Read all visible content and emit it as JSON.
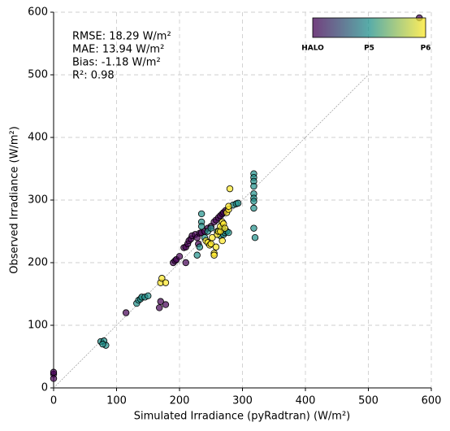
{
  "chart_data": {
    "type": "scatter",
    "xlabel": "Simulated Irradiance (pyRadtran) (W/m²)",
    "ylabel": "Observed Irradiance (W/m²)",
    "annotations": [
      "RMSE: 18.29 W/m²",
      "MAE:  13.94 W/m²",
      "Bias:  -1.18 W/m²",
      "R²: 0.98"
    ],
    "xlim": [
      0,
      600
    ],
    "ylim": [
      0,
      600
    ],
    "xticks": [
      0,
      100,
      200,
      300,
      400,
      500,
      600
    ],
    "yticks": [
      0,
      100,
      200,
      300,
      400,
      500,
      600
    ],
    "grid": true,
    "reference_line": {
      "x": [
        0,
        500
      ],
      "y": [
        0,
        500
      ]
    },
    "series": [
      {
        "name": "HALO",
        "color": "#440154",
        "x": [
          0,
          0,
          0,
          581,
          115,
          168,
          170,
          178,
          190,
          193,
          195,
          200,
          207,
          210,
          210,
          213,
          215,
          218,
          220,
          225,
          228,
          230,
          232,
          235,
          240,
          245,
          250,
          255,
          258,
          262,
          265,
          268,
          270,
          273
        ],
        "y": [
          22,
          15,
          25,
          591,
          120,
          128,
          138,
          133,
          200,
          203,
          205,
          210,
          224,
          225,
          200,
          230,
          235,
          238,
          243,
          245,
          240,
          230,
          247,
          248,
          250,
          255,
          258,
          265,
          268,
          272,
          275,
          278,
          280,
          283
        ]
      },
      {
        "name": "P5",
        "color": "#21918c",
        "x": [
          75,
          80,
          83,
          78,
          132,
          135,
          138,
          140,
          145,
          150,
          228,
          232,
          235,
          235,
          235,
          240,
          245,
          250,
          260,
          265,
          268,
          270,
          272,
          275,
          278,
          285,
          290,
          293,
          318,
          318,
          318,
          318,
          318,
          318,
          318,
          318,
          318,
          320
        ],
        "y": [
          74,
          75,
          68,
          70,
          135,
          140,
          142,
          145,
          145,
          147,
          212,
          225,
          265,
          258,
          278,
          240,
          250,
          255,
          250,
          243,
          255,
          245,
          248,
          250,
          248,
          292,
          294,
          295,
          342,
          336,
          330,
          322,
          310,
          303,
          298,
          287,
          255,
          240
        ]
      },
      {
        "name": "P6",
        "color": "#fde725",
        "x": [
          170,
          172,
          178,
          242,
          245,
          248,
          250,
          252,
          255,
          255,
          258,
          260,
          262,
          265,
          265,
          268,
          268,
          270,
          272,
          275,
          278,
          278,
          280
        ],
        "y": [
          168,
          175,
          168,
          235,
          232,
          228,
          230,
          240,
          215,
          212,
          225,
          245,
          250,
          250,
          258,
          235,
          265,
          262,
          255,
          280,
          285,
          290,
          318
        ]
      }
    ]
  }
}
